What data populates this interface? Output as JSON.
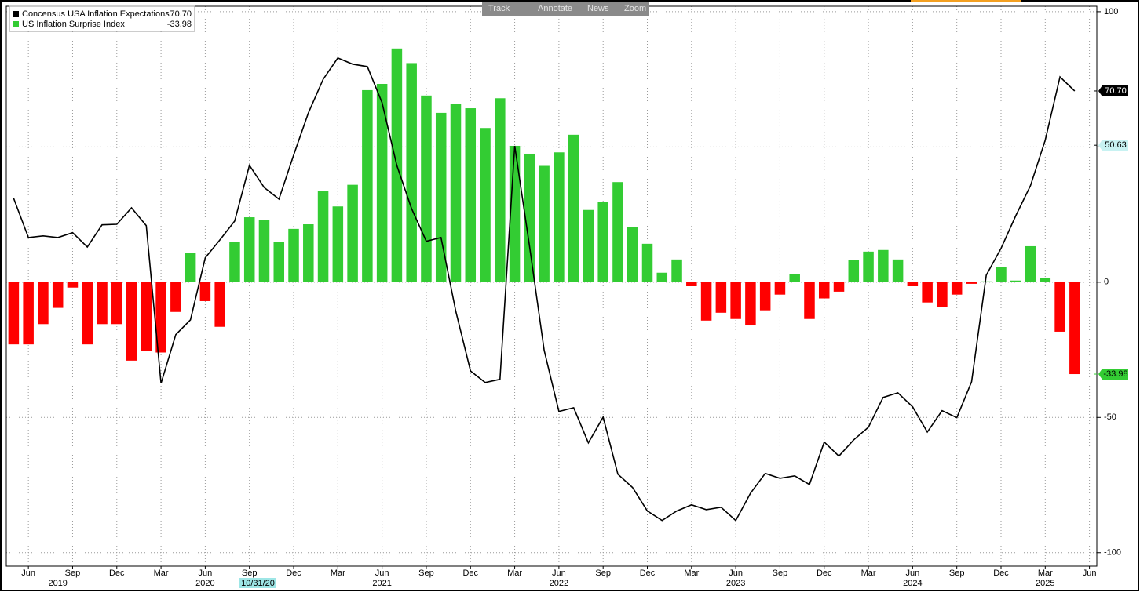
{
  "toolbar": [
    "Track",
    "Annotate",
    "News",
    "Zoom"
  ],
  "chart_data": {
    "type": "combo",
    "x": [
      "2019-05",
      "2019-06",
      "2019-07",
      "2019-08",
      "2019-09",
      "2019-10",
      "2019-11",
      "2019-12",
      "2020-01",
      "2020-02",
      "2020-03",
      "2020-04",
      "2020-05",
      "2020-06",
      "2020-07",
      "2020-08",
      "2020-09",
      "2020-10",
      "2020-11",
      "2020-12",
      "2021-01",
      "2021-02",
      "2021-03",
      "2021-04",
      "2021-05",
      "2021-06",
      "2021-07",
      "2021-08",
      "2021-09",
      "2021-10",
      "2021-11",
      "2021-12",
      "2022-01",
      "2022-02",
      "2022-03",
      "2022-04",
      "2022-05",
      "2022-06",
      "2022-07",
      "2022-08",
      "2022-09",
      "2022-10",
      "2022-11",
      "2022-12",
      "2023-01",
      "2023-02",
      "2023-03",
      "2023-04",
      "2023-05",
      "2023-06",
      "2023-07",
      "2023-08",
      "2023-09",
      "2023-10",
      "2023-11",
      "2023-12",
      "2024-01",
      "2024-02",
      "2024-03",
      "2024-04",
      "2024-05",
      "2024-06",
      "2024-07",
      "2024-08",
      "2024-09",
      "2024-10",
      "2024-11",
      "2024-12",
      "2025-01",
      "2025-02",
      "2025-03",
      "2025-04",
      "2025-05"
    ],
    "xlim": [
      "2019-05",
      "2025-06"
    ],
    "xticks": [
      {
        "value": "2019-06",
        "label": "Jun"
      },
      {
        "value": "2019-09",
        "label": "Sep"
      },
      {
        "value": "2019-12",
        "label": "Dec"
      },
      {
        "value": "2020-03",
        "label": "Mar"
      },
      {
        "value": "2020-06",
        "label": "Jun"
      },
      {
        "value": "2020-09",
        "label": "Sep"
      },
      {
        "value": "2020-12",
        "label": "Dec"
      },
      {
        "value": "2021-03",
        "label": "Mar"
      },
      {
        "value": "2021-06",
        "label": "Jun"
      },
      {
        "value": "2021-09",
        "label": "Sep"
      },
      {
        "value": "2021-12",
        "label": "Dec"
      },
      {
        "value": "2022-03",
        "label": "Mar"
      },
      {
        "value": "2022-06",
        "label": "Jun"
      },
      {
        "value": "2022-09",
        "label": "Sep"
      },
      {
        "value": "2022-12",
        "label": "Dec"
      },
      {
        "value": "2023-03",
        "label": "Mar"
      },
      {
        "value": "2023-06",
        "label": "Jun"
      },
      {
        "value": "2023-09",
        "label": "Sep"
      },
      {
        "value": "2023-12",
        "label": "Dec"
      },
      {
        "value": "2024-03",
        "label": "Mar"
      },
      {
        "value": "2024-06",
        "label": "Jun"
      },
      {
        "value": "2024-09",
        "label": "Sep"
      },
      {
        "value": "2024-12",
        "label": "Dec"
      },
      {
        "value": "2025-03",
        "label": "Mar"
      },
      {
        "value": "2025-06",
        "label": "Jun"
      }
    ],
    "year_ticks": [
      {
        "value": "2019-08",
        "label": "2019"
      },
      {
        "value": "2020-06",
        "label": "2020"
      },
      {
        "value": "2021-06",
        "label": "2021"
      },
      {
        "value": "2022-06",
        "label": "2022"
      },
      {
        "value": "2023-06",
        "label": "2023"
      },
      {
        "value": "2024-06",
        "label": "2024"
      },
      {
        "value": "2025-03",
        "label": "2025"
      }
    ],
    "crosshair_date": "10/31/20",
    "ylim": [
      -105,
      102
    ],
    "yticks": [
      100,
      50,
      0,
      -50,
      -100
    ],
    "grid": true,
    "reference": {
      "value": 50.63,
      "color": "#c8f2f2"
    },
    "series": [
      {
        "name": "Concensus USA Inflation Expectations",
        "type": "line",
        "color": "#000000",
        "last_label": "70.70",
        "values": [
          31,
          16.5,
          17.1,
          16.5,
          18.3,
          13,
          21.2,
          21.4,
          27.5,
          20.9,
          -37.4,
          -19.4,
          -13.9,
          9,
          15.7,
          22.6,
          43.2,
          35,
          30.7,
          47,
          62.6,
          75,
          82.9,
          80.6,
          79.7,
          66.4,
          43.2,
          27.2,
          15.1,
          16.5,
          -10.7,
          -32.8,
          -37.1,
          -35.9,
          50.4,
          13.6,
          -25.2,
          -47.8,
          -46.4,
          -59.4,
          -49.9,
          -71,
          -75.9,
          -84.6,
          -88.1,
          -84.6,
          -82.3,
          -84.1,
          -83.2,
          -88.1,
          -78,
          -70.7,
          -72.5,
          -71.6,
          -74.8,
          -59.1,
          -64.3,
          -58.3,
          -53.6,
          -42.6,
          -40.9,
          -46.1,
          -55.4,
          -47.5,
          -50.1,
          -36.8,
          2.6,
          12.5,
          24.6,
          35.7,
          52.5,
          75.9,
          70.7
        ]
      },
      {
        "name": "US Inflation Surprise Index",
        "type": "bar",
        "color": "#33cc33",
        "negative_color": "#ff0000",
        "last_label": "-33.98",
        "values": [
          -23,
          -23,
          -15.5,
          -9.5,
          -2,
          -23,
          -15.5,
          -15.5,
          -29,
          -25.5,
          -26,
          -11,
          10.7,
          -7,
          -16.5,
          14.8,
          24,
          23,
          14.8,
          19.7,
          21.4,
          33.6,
          28,
          36,
          71,
          73.3,
          86.4,
          81,
          69,
          62.6,
          66,
          64.3,
          57,
          68,
          50.4,
          47.5,
          43,
          48,
          54.5,
          26.7,
          29.6,
          37,
          20.3,
          14.2,
          3.5,
          8.4,
          -1.5,
          -14.2,
          -11.3,
          -13.6,
          -16,
          -10.4,
          -4.6,
          2.9,
          -13.6,
          -6,
          -3.5,
          8.1,
          11.3,
          11.9,
          8.4,
          -1.5,
          -7.5,
          -9.3,
          -4.6,
          -0.6,
          0.3,
          5.5,
          0.6,
          13.3,
          1.4,
          -18.3,
          -33.98
        ]
      }
    ]
  }
}
